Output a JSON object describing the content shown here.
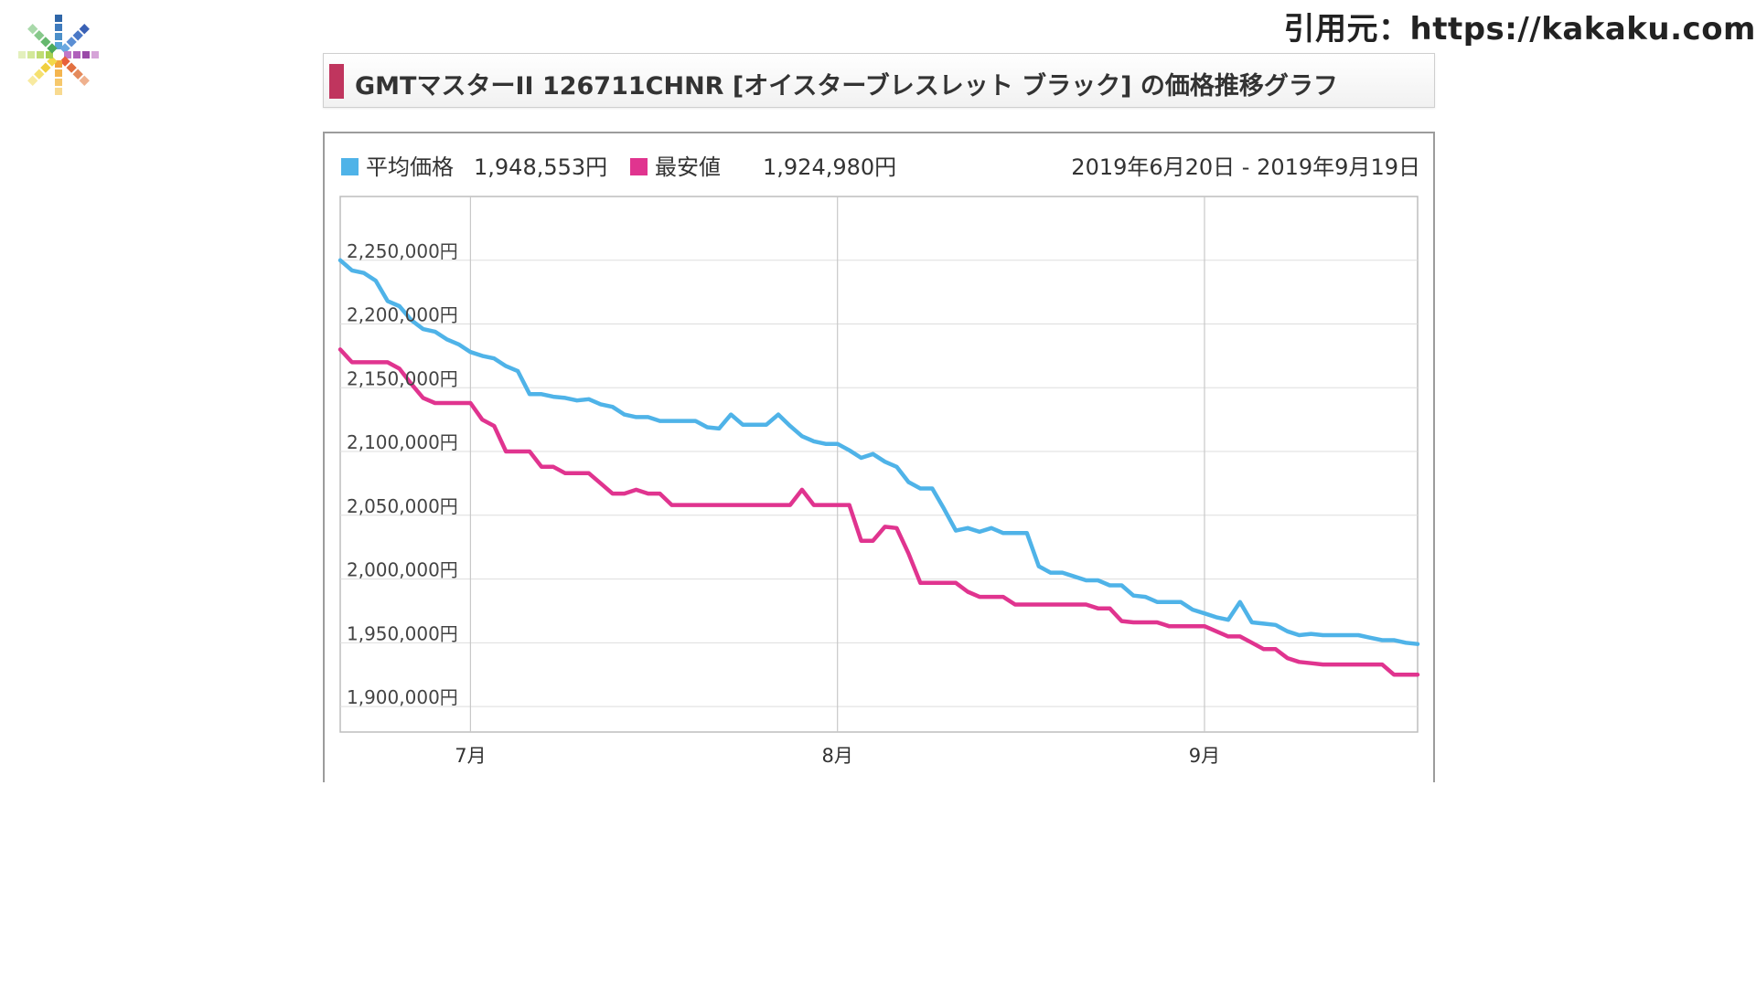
{
  "source_credit": "引用元：https://kakaku.com",
  "logo": {
    "icon": "kakaku-asterisk-logo"
  },
  "colors": {
    "average": "#4fb3e8",
    "lowest": "#e0348f",
    "title_accent": "#c0355e",
    "grid": "#dddddd",
    "text": "#333333"
  },
  "chart_data": {
    "type": "line",
    "title": "GMTマスターII 126711CHNR [オイスターブレスレット ブラック] の価格推移グラフ",
    "date_range": "2019年6月20日 - 2019年9月19日",
    "legend_position": "top-left",
    "grid": true,
    "xlim": [
      "2019-06-20",
      "2019-09-19"
    ],
    "x_ticks": [
      {
        "label": "7月",
        "date": "2019-07-01"
      },
      {
        "label": "8月",
        "date": "2019-08-01"
      },
      {
        "label": "9月",
        "date": "2019-09-01"
      }
    ],
    "ylim": [
      1880000,
      2300000
    ],
    "y_ticks": [
      {
        "value": 2250000,
        "label": "2,250,000円"
      },
      {
        "value": 2200000,
        "label": "2,200,000円"
      },
      {
        "value": 2150000,
        "label": "2,150,000円"
      },
      {
        "value": 2100000,
        "label": "2,100,000円"
      },
      {
        "value": 2050000,
        "label": "2,050,000円"
      },
      {
        "value": 2000000,
        "label": "2,000,000円"
      },
      {
        "value": 1950000,
        "label": "1,950,000円"
      },
      {
        "value": 1900000,
        "label": "1,900,000円"
      }
    ],
    "series": [
      {
        "name": "平均価格",
        "legend_value": "1,948,553円",
        "color": "#4fb3e8",
        "points": [
          [
            "2019-06-20",
            2250000
          ],
          [
            "2019-06-21",
            2242000
          ],
          [
            "2019-06-22",
            2240000
          ],
          [
            "2019-06-23",
            2234000
          ],
          [
            "2019-06-24",
            2218000
          ],
          [
            "2019-06-25",
            2214000
          ],
          [
            "2019-06-26",
            2203000
          ],
          [
            "2019-06-27",
            2196000
          ],
          [
            "2019-06-28",
            2194000
          ],
          [
            "2019-06-29",
            2188000
          ],
          [
            "2019-06-30",
            2184000
          ],
          [
            "2019-07-01",
            2178000
          ],
          [
            "2019-07-02",
            2175000
          ],
          [
            "2019-07-03",
            2173000
          ],
          [
            "2019-07-04",
            2167000
          ],
          [
            "2019-07-05",
            2163000
          ],
          [
            "2019-07-06",
            2145000
          ],
          [
            "2019-07-07",
            2145000
          ],
          [
            "2019-07-08",
            2143000
          ],
          [
            "2019-07-09",
            2142000
          ],
          [
            "2019-07-10",
            2140000
          ],
          [
            "2019-07-11",
            2141000
          ],
          [
            "2019-07-12",
            2137000
          ],
          [
            "2019-07-13",
            2135000
          ],
          [
            "2019-07-14",
            2129000
          ],
          [
            "2019-07-15",
            2127000
          ],
          [
            "2019-07-16",
            2127000
          ],
          [
            "2019-07-17",
            2124000
          ],
          [
            "2019-07-18",
            2124000
          ],
          [
            "2019-07-19",
            2124000
          ],
          [
            "2019-07-20",
            2124000
          ],
          [
            "2019-07-21",
            2119000
          ],
          [
            "2019-07-22",
            2118000
          ],
          [
            "2019-07-23",
            2129000
          ],
          [
            "2019-07-24",
            2121000
          ],
          [
            "2019-07-25",
            2121000
          ],
          [
            "2019-07-26",
            2121000
          ],
          [
            "2019-07-27",
            2129000
          ],
          [
            "2019-07-28",
            2120000
          ],
          [
            "2019-07-29",
            2112000
          ],
          [
            "2019-07-30",
            2108000
          ],
          [
            "2019-07-31",
            2106000
          ],
          [
            "2019-08-01",
            2106000
          ],
          [
            "2019-08-02",
            2101000
          ],
          [
            "2019-08-03",
            2095000
          ],
          [
            "2019-08-04",
            2098000
          ],
          [
            "2019-08-05",
            2092000
          ],
          [
            "2019-08-06",
            2088000
          ],
          [
            "2019-08-07",
            2076000
          ],
          [
            "2019-08-08",
            2071000
          ],
          [
            "2019-08-09",
            2071000
          ],
          [
            "2019-08-10",
            2055000
          ],
          [
            "2019-08-11",
            2038000
          ],
          [
            "2019-08-12",
            2040000
          ],
          [
            "2019-08-13",
            2037000
          ],
          [
            "2019-08-14",
            2040000
          ],
          [
            "2019-08-15",
            2036000
          ],
          [
            "2019-08-16",
            2036000
          ],
          [
            "2019-08-17",
            2036000
          ],
          [
            "2019-08-18",
            2010000
          ],
          [
            "2019-08-19",
            2005000
          ],
          [
            "2019-08-20",
            2005000
          ],
          [
            "2019-08-21",
            2002000
          ],
          [
            "2019-08-22",
            1999000
          ],
          [
            "2019-08-23",
            1999000
          ],
          [
            "2019-08-24",
            1995000
          ],
          [
            "2019-08-25",
            1995000
          ],
          [
            "2019-08-26",
            1987000
          ],
          [
            "2019-08-27",
            1986000
          ],
          [
            "2019-08-28",
            1982000
          ],
          [
            "2019-08-29",
            1982000
          ],
          [
            "2019-08-30",
            1982000
          ],
          [
            "2019-08-31",
            1976000
          ],
          [
            "2019-09-01",
            1973000
          ],
          [
            "2019-09-02",
            1970000
          ],
          [
            "2019-09-03",
            1968000
          ],
          [
            "2019-09-04",
            1982000
          ],
          [
            "2019-09-05",
            1966000
          ],
          [
            "2019-09-06",
            1965000
          ],
          [
            "2019-09-07",
            1964000
          ],
          [
            "2019-09-08",
            1959000
          ],
          [
            "2019-09-09",
            1956000
          ],
          [
            "2019-09-10",
            1957000
          ],
          [
            "2019-09-11",
            1956000
          ],
          [
            "2019-09-12",
            1956000
          ],
          [
            "2019-09-13",
            1956000
          ],
          [
            "2019-09-14",
            1956000
          ],
          [
            "2019-09-15",
            1954000
          ],
          [
            "2019-09-16",
            1952000
          ],
          [
            "2019-09-17",
            1952000
          ],
          [
            "2019-09-18",
            1950000
          ],
          [
            "2019-09-19",
            1949000
          ]
        ]
      },
      {
        "name": "最安値",
        "legend_value": "1,924,980円",
        "color": "#e0348f",
        "points": [
          [
            "2019-06-20",
            2180000
          ],
          [
            "2019-06-21",
            2170000
          ],
          [
            "2019-06-22",
            2170000
          ],
          [
            "2019-06-23",
            2170000
          ],
          [
            "2019-06-24",
            2170000
          ],
          [
            "2019-06-25",
            2165000
          ],
          [
            "2019-06-26",
            2153000
          ],
          [
            "2019-06-27",
            2142000
          ],
          [
            "2019-06-28",
            2138000
          ],
          [
            "2019-06-29",
            2138000
          ],
          [
            "2019-06-30",
            2138000
          ],
          [
            "2019-07-01",
            2138000
          ],
          [
            "2019-07-02",
            2125000
          ],
          [
            "2019-07-03",
            2120000
          ],
          [
            "2019-07-04",
            2100000
          ],
          [
            "2019-07-05",
            2100000
          ],
          [
            "2019-07-06",
            2100000
          ],
          [
            "2019-07-07",
            2088000
          ],
          [
            "2019-07-08",
            2088000
          ],
          [
            "2019-07-09",
            2083000
          ],
          [
            "2019-07-10",
            2083000
          ],
          [
            "2019-07-11",
            2083000
          ],
          [
            "2019-07-12",
            2075000
          ],
          [
            "2019-07-13",
            2067000
          ],
          [
            "2019-07-14",
            2067000
          ],
          [
            "2019-07-15",
            2070000
          ],
          [
            "2019-07-16",
            2067000
          ],
          [
            "2019-07-17",
            2067000
          ],
          [
            "2019-07-18",
            2058000
          ],
          [
            "2019-07-19",
            2058000
          ],
          [
            "2019-07-20",
            2058000
          ],
          [
            "2019-07-21",
            2058000
          ],
          [
            "2019-07-22",
            2058000
          ],
          [
            "2019-07-23",
            2058000
          ],
          [
            "2019-07-24",
            2058000
          ],
          [
            "2019-07-25",
            2058000
          ],
          [
            "2019-07-26",
            2058000
          ],
          [
            "2019-07-27",
            2058000
          ],
          [
            "2019-07-28",
            2058000
          ],
          [
            "2019-07-29",
            2070000
          ],
          [
            "2019-07-30",
            2058000
          ],
          [
            "2019-07-31",
            2058000
          ],
          [
            "2019-08-01",
            2058000
          ],
          [
            "2019-08-02",
            2058000
          ],
          [
            "2019-08-03",
            2030000
          ],
          [
            "2019-08-04",
            2030000
          ],
          [
            "2019-08-05",
            2041000
          ],
          [
            "2019-08-06",
            2040000
          ],
          [
            "2019-08-07",
            2020000
          ],
          [
            "2019-08-08",
            1997000
          ],
          [
            "2019-08-09",
            1997000
          ],
          [
            "2019-08-10",
            1997000
          ],
          [
            "2019-08-11",
            1997000
          ],
          [
            "2019-08-12",
            1990000
          ],
          [
            "2019-08-13",
            1986000
          ],
          [
            "2019-08-14",
            1986000
          ],
          [
            "2019-08-15",
            1986000
          ],
          [
            "2019-08-16",
            1980000
          ],
          [
            "2019-08-17",
            1980000
          ],
          [
            "2019-08-18",
            1980000
          ],
          [
            "2019-08-19",
            1980000
          ],
          [
            "2019-08-20",
            1980000
          ],
          [
            "2019-08-21",
            1980000
          ],
          [
            "2019-08-22",
            1980000
          ],
          [
            "2019-08-23",
            1977000
          ],
          [
            "2019-08-24",
            1977000
          ],
          [
            "2019-08-25",
            1967000
          ],
          [
            "2019-08-26",
            1966000
          ],
          [
            "2019-08-27",
            1966000
          ],
          [
            "2019-08-28",
            1966000
          ],
          [
            "2019-08-29",
            1963000
          ],
          [
            "2019-08-30",
            1963000
          ],
          [
            "2019-08-31",
            1963000
          ],
          [
            "2019-09-01",
            1963000
          ],
          [
            "2019-09-02",
            1959000
          ],
          [
            "2019-09-03",
            1955000
          ],
          [
            "2019-09-04",
            1955000
          ],
          [
            "2019-09-05",
            1950000
          ],
          [
            "2019-09-06",
            1945000
          ],
          [
            "2019-09-07",
            1945000
          ],
          [
            "2019-09-08",
            1938000
          ],
          [
            "2019-09-09",
            1935000
          ],
          [
            "2019-09-10",
            1934000
          ],
          [
            "2019-09-11",
            1933000
          ],
          [
            "2019-09-12",
            1933000
          ],
          [
            "2019-09-13",
            1933000
          ],
          [
            "2019-09-14",
            1933000
          ],
          [
            "2019-09-15",
            1933000
          ],
          [
            "2019-09-16",
            1933000
          ],
          [
            "2019-09-17",
            1925000
          ],
          [
            "2019-09-18",
            1925000
          ],
          [
            "2019-09-19",
            1925000
          ]
        ]
      }
    ]
  }
}
